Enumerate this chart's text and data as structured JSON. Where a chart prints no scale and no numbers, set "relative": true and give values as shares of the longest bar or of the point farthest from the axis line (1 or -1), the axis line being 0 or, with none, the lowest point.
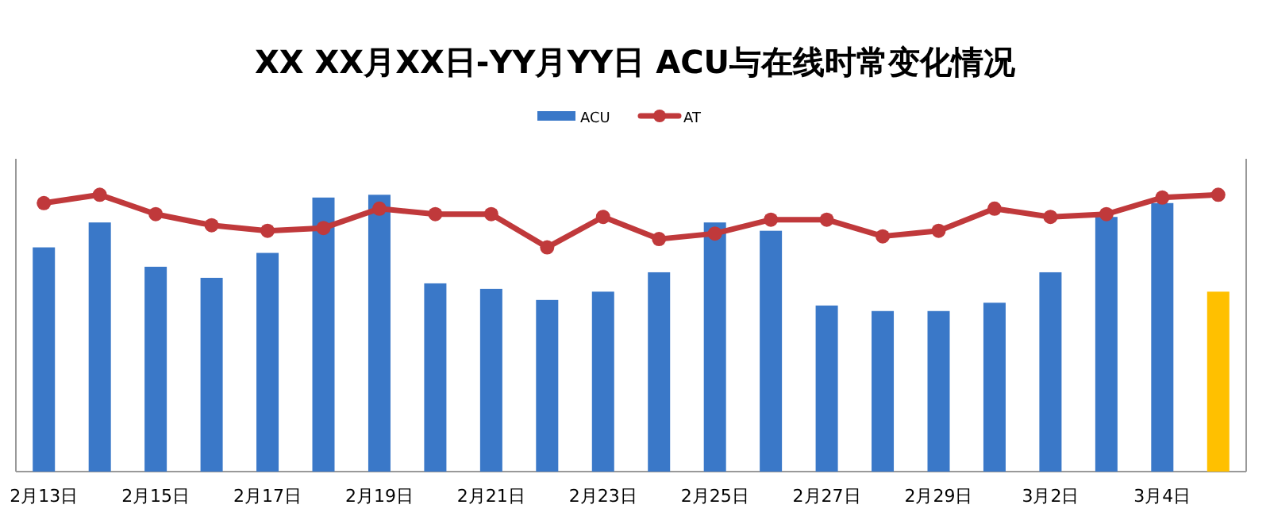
{
  "chart_data": {
    "type": "bar",
    "title": "XX XX月XX日-YY月YY日 ACU与在线时常变化情况",
    "relative": true,
    "legend": "top",
    "marker": "circle",
    "line_style": "solid",
    "categories": [
      "2月13日",
      null,
      "2月15日",
      null,
      "2月17日",
      null,
      "2月19日",
      null,
      "2月21日",
      null,
      "2月23日",
      null,
      "2月25日",
      null,
      "2月27日",
      null,
      "2月29日",
      null,
      "3月2日",
      null,
      "3月4日",
      null
    ],
    "series": [
      {
        "name": "ACU",
        "color": "#3a78c8",
        "colors": [
          "#3a78c8",
          "#3a78c8",
          "#3a78c8",
          "#3a78c8",
          "#3a78c8",
          "#3a78c8",
          "#3a78c8",
          "#3a78c8",
          "#3a78c8",
          "#3a78c8",
          "#3a78c8",
          "#3a78c8",
          "#3a78c8",
          "#3a78c8",
          "#3a78c8",
          "#3a78c8",
          "#3a78c8",
          "#3a78c8",
          "#3a78c8",
          "#3a78c8",
          "#3a78c8",
          "#ffc000"
        ],
        "values": [
          0.81,
          0.9,
          0.74,
          0.7,
          0.79,
          0.99,
          1,
          0.68,
          0.66,
          0.62,
          0.65,
          0.72,
          0.9,
          0.87,
          0.6,
          0.58,
          0.58,
          0.61,
          0.72,
          0.92,
          0.97,
          0.65
        ]
      },
      {
        "name": "AT",
        "type": "line",
        "color": "#c0393b",
        "values": [
          0.97,
          1,
          0.93,
          0.89,
          0.87,
          0.88,
          0.95,
          0.93,
          0.93,
          0.81,
          0.92,
          0.84,
          0.86,
          0.91,
          0.91,
          0.85,
          0.87,
          0.95,
          0.92,
          0.93,
          0.99,
          1
        ]
      }
    ]
  }
}
